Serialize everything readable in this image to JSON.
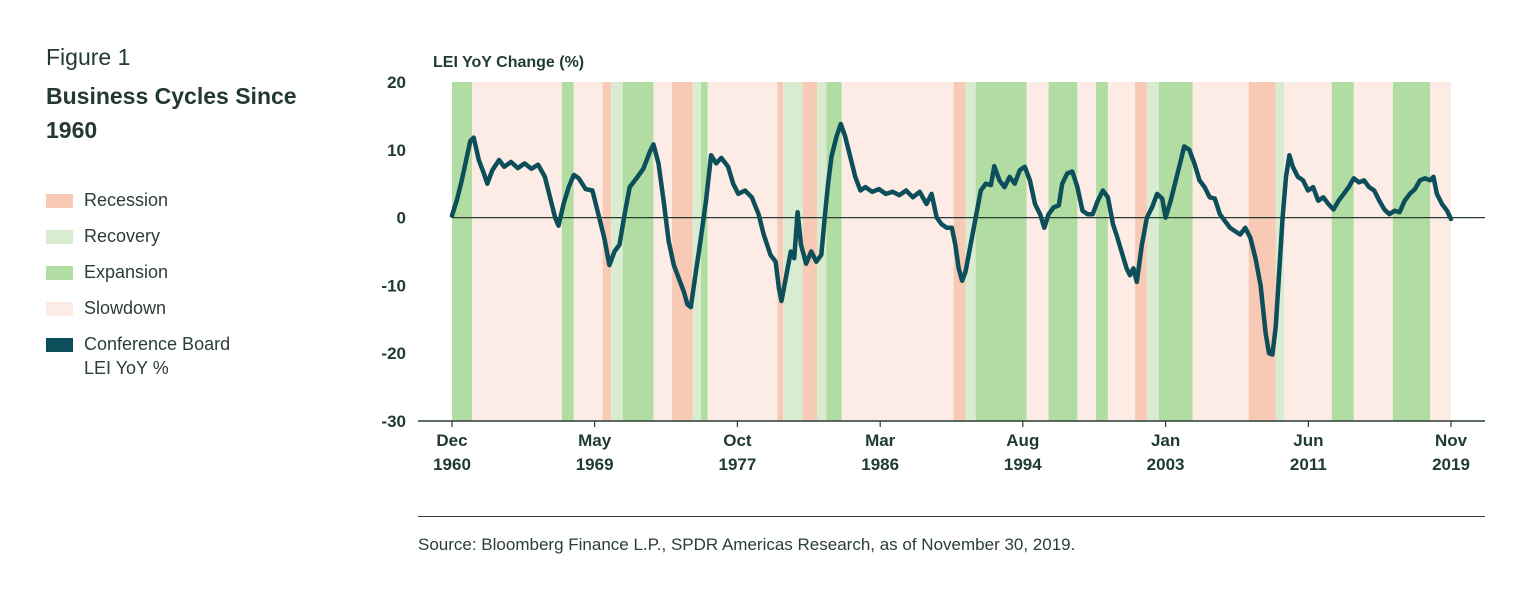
{
  "figure": {
    "label": "Figure 1",
    "title": "Business Cycles Since 1960",
    "source": "Source: Bloomberg Finance L.P., SPDR Americas Research, as of November 30, 2019."
  },
  "legend": [
    {
      "key": "recession",
      "label": "Recession",
      "color": "#f8c9b4"
    },
    {
      "key": "recovery",
      "label": "Recovery",
      "color": "#d9ecd2"
    },
    {
      "key": "expansion",
      "label": "Expansion",
      "color": "#b1dca2"
    },
    {
      "key": "slowdown",
      "label": "Slowdown",
      "color": "#fdece6"
    },
    {
      "key": "lei",
      "label": "Conference Board",
      "label2": "LEI YoY %",
      "color": "#0c4f5a"
    }
  ],
  "chart_data": {
    "type": "line",
    "title": "LEI YoY Change (%)",
    "ylabel": "LEI YoY Change (%)",
    "xlabel": "",
    "ylim": [
      -30,
      20
    ],
    "yticks": [
      20,
      10,
      0,
      -10,
      -20,
      -30
    ],
    "xlim": [
      1960.92,
      2019.83
    ],
    "xticks": [
      {
        "value": 1960.92,
        "line1": "Dec",
        "line2": "1960"
      },
      {
        "value": 1969.33,
        "line1": "May",
        "line2": "1969"
      },
      {
        "value": 1977.75,
        "line1": "Oct",
        "line2": "1977"
      },
      {
        "value": 1986.17,
        "line1": "Mar",
        "line2": "1986"
      },
      {
        "value": 1994.58,
        "line1": "Aug",
        "line2": "1994"
      },
      {
        "value": 2003.0,
        "line1": "Jan",
        "line2": "2003"
      },
      {
        "value": 2011.42,
        "line1": "Jun",
        "line2": "2011"
      },
      {
        "value": 2019.83,
        "line1": "Nov",
        "line2": "2019"
      }
    ],
    "phases": [
      {
        "phase": "expansion",
        "start": 1960.92,
        "end": 1962.1
      },
      {
        "phase": "slowdown",
        "start": 1962.1,
        "end": 1967.4
      },
      {
        "phase": "expansion",
        "start": 1967.4,
        "end": 1968.1
      },
      {
        "phase": "slowdown",
        "start": 1968.1,
        "end": 1969.8
      },
      {
        "phase": "recession",
        "start": 1969.8,
        "end": 1970.3
      },
      {
        "phase": "recovery",
        "start": 1970.3,
        "end": 1971.0
      },
      {
        "phase": "expansion",
        "start": 1971.0,
        "end": 1972.8
      },
      {
        "phase": "slowdown",
        "start": 1972.8,
        "end": 1973.9
      },
      {
        "phase": "recession",
        "start": 1973.9,
        "end": 1975.1
      },
      {
        "phase": "recovery",
        "start": 1975.1,
        "end": 1975.6
      },
      {
        "phase": "expansion",
        "start": 1975.6,
        "end": 1976.0
      },
      {
        "phase": "slowdown",
        "start": 1976.0,
        "end": 1980.1
      },
      {
        "phase": "recession",
        "start": 1980.1,
        "end": 1980.45
      },
      {
        "phase": "recovery",
        "start": 1980.45,
        "end": 1981.6
      },
      {
        "phase": "recession",
        "start": 1981.6,
        "end": 1982.45
      },
      {
        "phase": "recovery",
        "start": 1982.45,
        "end": 1983.0
      },
      {
        "phase": "expansion",
        "start": 1983.0,
        "end": 1983.9
      },
      {
        "phase": "slowdown",
        "start": 1983.9,
        "end": 1990.5
      },
      {
        "phase": "recession",
        "start": 1990.5,
        "end": 1991.2
      },
      {
        "phase": "recovery",
        "start": 1991.2,
        "end": 1991.8
      },
      {
        "phase": "expansion",
        "start": 1991.8,
        "end": 1994.8
      },
      {
        "phase": "slowdown",
        "start": 1994.8,
        "end": 1996.1
      },
      {
        "phase": "expansion",
        "start": 1996.1,
        "end": 1997.8
      },
      {
        "phase": "slowdown",
        "start": 1997.8,
        "end": 1998.9
      },
      {
        "phase": "expansion",
        "start": 1998.9,
        "end": 1999.6
      },
      {
        "phase": "slowdown",
        "start": 1999.6,
        "end": 2001.2
      },
      {
        "phase": "recession",
        "start": 2001.2,
        "end": 2001.9
      },
      {
        "phase": "recovery",
        "start": 2001.9,
        "end": 2002.6
      },
      {
        "phase": "expansion",
        "start": 2002.6,
        "end": 2004.6
      },
      {
        "phase": "slowdown",
        "start": 2004.6,
        "end": 2007.9
      },
      {
        "phase": "recession",
        "start": 2007.9,
        "end": 2009.5
      },
      {
        "phase": "recovery",
        "start": 2009.5,
        "end": 2010.0
      },
      {
        "phase": "slowdown",
        "start": 2010.0,
        "end": 2012.8
      },
      {
        "phase": "expansion",
        "start": 2012.8,
        "end": 2014.1
      },
      {
        "phase": "slowdown",
        "start": 2014.1,
        "end": 2016.4
      },
      {
        "phase": "expansion",
        "start": 2016.4,
        "end": 2018.6
      },
      {
        "phase": "slowdown",
        "start": 2018.6,
        "end": 2019.83
      }
    ],
    "series": [
      {
        "name": "Conference Board LEI YoY %",
        "color": "#0c4f5a",
        "points": [
          [
            1960.92,
            0.3
          ],
          [
            1961.2,
            2.5
          ],
          [
            1961.5,
            5.5
          ],
          [
            1961.8,
            9.0
          ],
          [
            1962.0,
            11.3
          ],
          [
            1962.2,
            11.8
          ],
          [
            1962.5,
            8.5
          ],
          [
            1962.8,
            6.5
          ],
          [
            1963.0,
            5.0
          ],
          [
            1963.3,
            7.0
          ],
          [
            1963.7,
            8.5
          ],
          [
            1964.0,
            7.5
          ],
          [
            1964.4,
            8.2
          ],
          [
            1964.8,
            7.3
          ],
          [
            1965.2,
            8.0
          ],
          [
            1965.6,
            7.2
          ],
          [
            1966.0,
            7.8
          ],
          [
            1966.4,
            6.0
          ],
          [
            1966.8,
            2.0
          ],
          [
            1967.0,
            0.0
          ],
          [
            1967.2,
            -1.2
          ],
          [
            1967.5,
            2.0
          ],
          [
            1967.8,
            4.5
          ],
          [
            1968.1,
            6.3
          ],
          [
            1968.4,
            5.8
          ],
          [
            1968.8,
            4.2
          ],
          [
            1969.2,
            4.0
          ],
          [
            1969.6,
            0.0
          ],
          [
            1969.9,
            -3.0
          ],
          [
            1970.2,
            -7.0
          ],
          [
            1970.5,
            -5.0
          ],
          [
            1970.8,
            -4.0
          ],
          [
            1971.1,
            0.5
          ],
          [
            1971.4,
            4.5
          ],
          [
            1971.8,
            5.8
          ],
          [
            1972.2,
            7.2
          ],
          [
            1972.6,
            9.8
          ],
          [
            1972.8,
            10.8
          ],
          [
            1973.1,
            8.0
          ],
          [
            1973.4,
            2.5
          ],
          [
            1973.7,
            -3.5
          ],
          [
            1974.0,
            -7.0
          ],
          [
            1974.3,
            -9.0
          ],
          [
            1974.6,
            -11.0
          ],
          [
            1974.8,
            -12.8
          ],
          [
            1975.0,
            -13.2
          ],
          [
            1975.3,
            -8.0
          ],
          [
            1975.6,
            -3.0
          ],
          [
            1975.9,
            2.5
          ],
          [
            1976.2,
            9.2
          ],
          [
            1976.5,
            8.0
          ],
          [
            1976.8,
            8.8
          ],
          [
            1977.2,
            7.5
          ],
          [
            1977.5,
            5.0
          ],
          [
            1977.8,
            3.5
          ],
          [
            1978.2,
            4.0
          ],
          [
            1978.6,
            3.0
          ],
          [
            1979.0,
            0.5
          ],
          [
            1979.3,
            -2.5
          ],
          [
            1979.7,
            -5.5
          ],
          [
            1980.0,
            -6.5
          ],
          [
            1980.2,
            -10.5
          ],
          [
            1980.35,
            -12.3
          ],
          [
            1980.6,
            -9.0
          ],
          [
            1980.9,
            -5.0
          ],
          [
            1981.1,
            -6.0
          ],
          [
            1981.3,
            0.8
          ],
          [
            1981.5,
            -4.0
          ],
          [
            1981.8,
            -6.8
          ],
          [
            1982.1,
            -5.0
          ],
          [
            1982.4,
            -6.5
          ],
          [
            1982.7,
            -5.5
          ],
          [
            1982.9,
            0.0
          ],
          [
            1983.1,
            5.0
          ],
          [
            1983.3,
            9.0
          ],
          [
            1983.6,
            12.0
          ],
          [
            1983.85,
            13.8
          ],
          [
            1984.1,
            12.0
          ],
          [
            1984.4,
            9.0
          ],
          [
            1984.7,
            6.0
          ],
          [
            1985.0,
            4.0
          ],
          [
            1985.3,
            4.5
          ],
          [
            1985.7,
            3.8
          ],
          [
            1986.1,
            4.2
          ],
          [
            1986.5,
            3.5
          ],
          [
            1986.9,
            3.8
          ],
          [
            1987.3,
            3.3
          ],
          [
            1987.7,
            4.0
          ],
          [
            1988.1,
            3.0
          ],
          [
            1988.5,
            3.8
          ],
          [
            1988.9,
            2.0
          ],
          [
            1989.2,
            3.5
          ],
          [
            1989.5,
            0.0
          ],
          [
            1989.8,
            -1.0
          ],
          [
            1990.1,
            -1.5
          ],
          [
            1990.4,
            -1.5
          ],
          [
            1990.6,
            -4.0
          ],
          [
            1990.8,
            -7.5
          ],
          [
            1991.0,
            -9.3
          ],
          [
            1991.2,
            -8.0
          ],
          [
            1991.5,
            -4.0
          ],
          [
            1991.8,
            0.0
          ],
          [
            1992.1,
            4.0
          ],
          [
            1992.4,
            5.0
          ],
          [
            1992.7,
            4.8
          ],
          [
            1992.9,
            7.6
          ],
          [
            1993.2,
            5.5
          ],
          [
            1993.5,
            4.5
          ],
          [
            1993.8,
            6.0
          ],
          [
            1994.1,
            5.0
          ],
          [
            1994.4,
            7.0
          ],
          [
            1994.7,
            7.5
          ],
          [
            1995.0,
            5.5
          ],
          [
            1995.3,
            2.0
          ],
          [
            1995.6,
            0.5
          ],
          [
            1995.85,
            -1.5
          ],
          [
            1996.1,
            0.5
          ],
          [
            1996.4,
            1.5
          ],
          [
            1996.7,
            1.8
          ],
          [
            1996.9,
            5.0
          ],
          [
            1997.2,
            6.5
          ],
          [
            1997.5,
            6.8
          ],
          [
            1997.8,
            4.5
          ],
          [
            1998.1,
            1.0
          ],
          [
            1998.4,
            0.5
          ],
          [
            1998.7,
            0.5
          ],
          [
            1999.0,
            2.5
          ],
          [
            1999.3,
            4.0
          ],
          [
            1999.6,
            3.0
          ],
          [
            1999.9,
            -1.0
          ],
          [
            2000.1,
            -2.5
          ],
          [
            2000.4,
            -5.0
          ],
          [
            2000.7,
            -7.5
          ],
          [
            2000.9,
            -8.5
          ],
          [
            2001.1,
            -7.5
          ],
          [
            2001.3,
            -9.5
          ],
          [
            2001.6,
            -4.0
          ],
          [
            2001.9,
            0.0
          ],
          [
            2002.2,
            1.5
          ],
          [
            2002.5,
            3.5
          ],
          [
            2002.8,
            2.8
          ],
          [
            2003.0,
            0.0
          ],
          [
            2003.3,
            2.5
          ],
          [
            2003.6,
            5.5
          ],
          [
            2003.9,
            8.5
          ],
          [
            2004.1,
            10.5
          ],
          [
            2004.4,
            10.0
          ],
          [
            2004.7,
            8.0
          ],
          [
            2005.0,
            5.5
          ],
          [
            2005.3,
            4.5
          ],
          [
            2005.6,
            3.0
          ],
          [
            2005.9,
            2.8
          ],
          [
            2006.2,
            0.5
          ],
          [
            2006.5,
            -0.5
          ],
          [
            2006.8,
            -1.5
          ],
          [
            2007.1,
            -2.0
          ],
          [
            2007.4,
            -2.5
          ],
          [
            2007.7,
            -1.5
          ],
          [
            2008.0,
            -3.0
          ],
          [
            2008.3,
            -6.0
          ],
          [
            2008.6,
            -10.0
          ],
          [
            2008.9,
            -17.0
          ],
          [
            2009.1,
            -20.0
          ],
          [
            2009.3,
            -20.2
          ],
          [
            2009.5,
            -16.0
          ],
          [
            2009.7,
            -8.0
          ],
          [
            2009.9,
            0.0
          ],
          [
            2010.1,
            6.0
          ],
          [
            2010.3,
            9.2
          ],
          [
            2010.5,
            7.5
          ],
          [
            2010.8,
            6.0
          ],
          [
            2011.1,
            5.5
          ],
          [
            2011.4,
            4.0
          ],
          [
            2011.7,
            4.5
          ],
          [
            2012.0,
            2.5
          ],
          [
            2012.3,
            3.0
          ],
          [
            2012.6,
            2.0
          ],
          [
            2012.9,
            1.2
          ],
          [
            2013.2,
            2.5
          ],
          [
            2013.5,
            3.5
          ],
          [
            2013.8,
            4.5
          ],
          [
            2014.1,
            5.8
          ],
          [
            2014.4,
            5.2
          ],
          [
            2014.7,
            5.5
          ],
          [
            2015.0,
            4.5
          ],
          [
            2015.3,
            4.0
          ],
          [
            2015.6,
            2.5
          ],
          [
            2015.9,
            1.2
          ],
          [
            2016.2,
            0.5
          ],
          [
            2016.5,
            1.0
          ],
          [
            2016.8,
            0.8
          ],
          [
            2017.1,
            2.5
          ],
          [
            2017.4,
            3.5
          ],
          [
            2017.7,
            4.2
          ],
          [
            2018.0,
            5.5
          ],
          [
            2018.3,
            5.8
          ],
          [
            2018.6,
            5.5
          ],
          [
            2018.8,
            6.0
          ],
          [
            2019.0,
            3.5
          ],
          [
            2019.3,
            2.0
          ],
          [
            2019.6,
            1.0
          ],
          [
            2019.83,
            -0.2
          ]
        ]
      }
    ]
  }
}
